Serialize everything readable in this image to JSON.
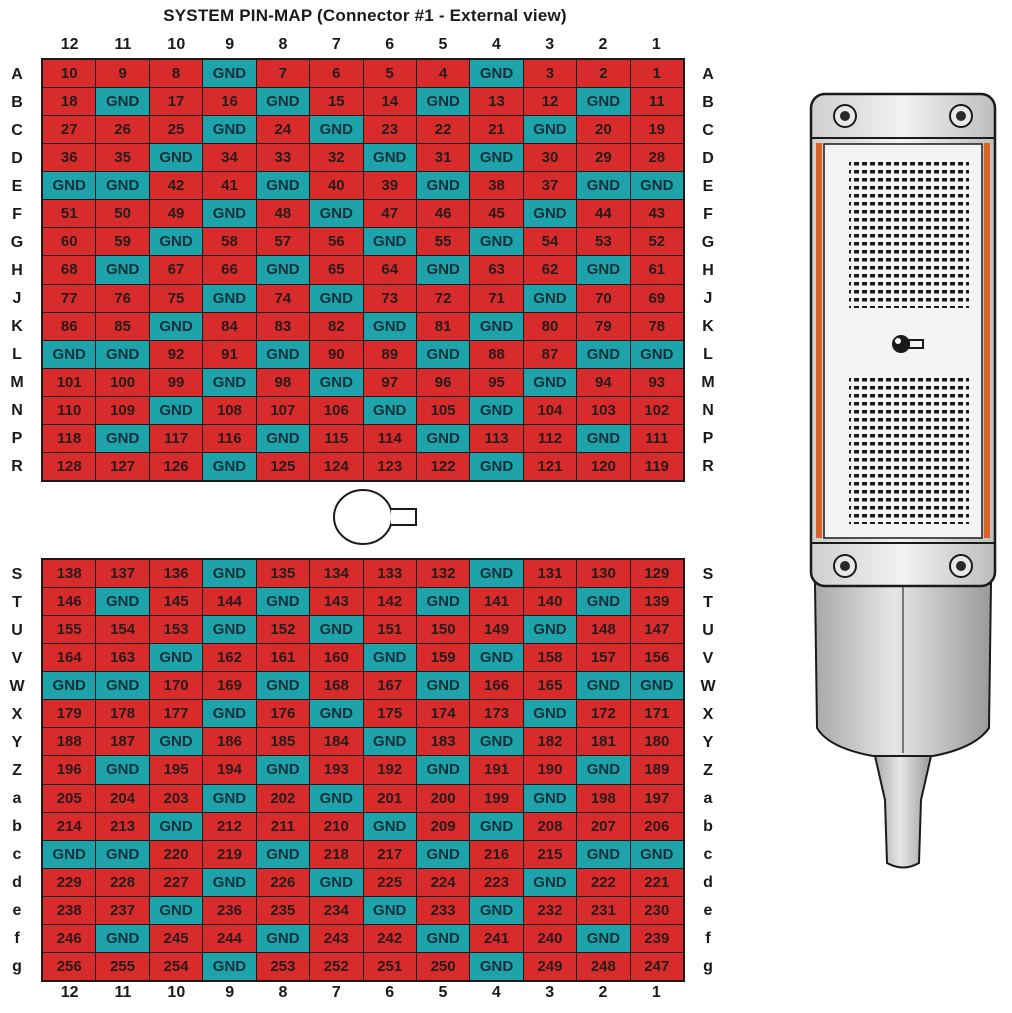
{
  "title": "SYSTEM PIN-MAP (Connector #1 - External view)",
  "columns": [
    "12",
    "11",
    "10",
    "9",
    "8",
    "7",
    "6",
    "5",
    "4",
    "3",
    "2",
    "1"
  ],
  "colors": {
    "pin": "#d82c2c",
    "gnd": "#1fa3ab"
  },
  "upper": {
    "rows": [
      "A",
      "B",
      "C",
      "D",
      "E",
      "F",
      "G",
      "H",
      "J",
      "K",
      "L",
      "M",
      "N",
      "P",
      "R"
    ],
    "cells": [
      [
        "10",
        "9",
        "8",
        "GND",
        "7",
        "6",
        "5",
        "4",
        "GND",
        "3",
        "2",
        "1"
      ],
      [
        "18",
        "GND",
        "17",
        "16",
        "GND",
        "15",
        "14",
        "GND",
        "13",
        "12",
        "GND",
        "11"
      ],
      [
        "27",
        "26",
        "25",
        "GND",
        "24",
        "GND",
        "23",
        "22",
        "21",
        "GND",
        "20",
        "19"
      ],
      [
        "36",
        "35",
        "GND",
        "34",
        "33",
        "32",
        "GND",
        "31",
        "GND",
        "30",
        "29",
        "28"
      ],
      [
        "GND",
        "GND",
        "42",
        "41",
        "GND",
        "40",
        "39",
        "GND",
        "38",
        "37",
        "GND",
        "GND"
      ],
      [
        "51",
        "50",
        "49",
        "GND",
        "48",
        "GND",
        "47",
        "46",
        "45",
        "GND",
        "44",
        "43"
      ],
      [
        "60",
        "59",
        "GND",
        "58",
        "57",
        "56",
        "GND",
        "55",
        "GND",
        "54",
        "53",
        "52"
      ],
      [
        "68",
        "GND",
        "67",
        "66",
        "GND",
        "65",
        "64",
        "GND",
        "63",
        "62",
        "GND",
        "61"
      ],
      [
        "77",
        "76",
        "75",
        "GND",
        "74",
        "GND",
        "73",
        "72",
        "71",
        "GND",
        "70",
        "69"
      ],
      [
        "86",
        "85",
        "GND",
        "84",
        "83",
        "82",
        "GND",
        "81",
        "GND",
        "80",
        "79",
        "78"
      ],
      [
        "GND",
        "GND",
        "92",
        "91",
        "GND",
        "90",
        "89",
        "GND",
        "88",
        "87",
        "GND",
        "GND"
      ],
      [
        "101",
        "100",
        "99",
        "GND",
        "98",
        "GND",
        "97",
        "96",
        "95",
        "GND",
        "94",
        "93"
      ],
      [
        "110",
        "109",
        "GND",
        "108",
        "107",
        "106",
        "GND",
        "105",
        "GND",
        "104",
        "103",
        "102"
      ],
      [
        "118",
        "GND",
        "117",
        "116",
        "GND",
        "115",
        "114",
        "GND",
        "113",
        "112",
        "GND",
        "111"
      ],
      [
        "128",
        "127",
        "126",
        "GND",
        "125",
        "124",
        "123",
        "122",
        "GND",
        "121",
        "120",
        "119"
      ]
    ]
  },
  "lower": {
    "rows": [
      "S",
      "T",
      "U",
      "V",
      "W",
      "X",
      "Y",
      "Z",
      "a",
      "b",
      "c",
      "d",
      "e",
      "f",
      "g"
    ],
    "cells": [
      [
        "138",
        "137",
        "136",
        "GND",
        "135",
        "134",
        "133",
        "132",
        "GND",
        "131",
        "130",
        "129"
      ],
      [
        "146",
        "GND",
        "145",
        "144",
        "GND",
        "143",
        "142",
        "GND",
        "141",
        "140",
        "GND",
        "139"
      ],
      [
        "155",
        "154",
        "153",
        "GND",
        "152",
        "GND",
        "151",
        "150",
        "149",
        "GND",
        "148",
        "147"
      ],
      [
        "164",
        "163",
        "GND",
        "162",
        "161",
        "160",
        "GND",
        "159",
        "GND",
        "158",
        "157",
        "156"
      ],
      [
        "GND",
        "GND",
        "170",
        "169",
        "GND",
        "168",
        "167",
        "GND",
        "166",
        "165",
        "GND",
        "GND"
      ],
      [
        "179",
        "178",
        "177",
        "GND",
        "176",
        "GND",
        "175",
        "174",
        "173",
        "GND",
        "172",
        "171"
      ],
      [
        "188",
        "187",
        "GND",
        "186",
        "185",
        "184",
        "GND",
        "183",
        "GND",
        "182",
        "181",
        "180"
      ],
      [
        "196",
        "GND",
        "195",
        "194",
        "GND",
        "193",
        "192",
        "GND",
        "191",
        "190",
        "GND",
        "189"
      ],
      [
        "205",
        "204",
        "203",
        "GND",
        "202",
        "GND",
        "201",
        "200",
        "199",
        "GND",
        "198",
        "197"
      ],
      [
        "214",
        "213",
        "GND",
        "212",
        "211",
        "210",
        "GND",
        "209",
        "GND",
        "208",
        "207",
        "206"
      ],
      [
        "GND",
        "GND",
        "220",
        "219",
        "GND",
        "218",
        "217",
        "GND",
        "216",
        "215",
        "GND",
        "GND"
      ],
      [
        "229",
        "228",
        "227",
        "GND",
        "226",
        "GND",
        "225",
        "224",
        "223",
        "GND",
        "222",
        "221"
      ],
      [
        "238",
        "237",
        "GND",
        "236",
        "235",
        "234",
        "GND",
        "233",
        "GND",
        "232",
        "231",
        "230"
      ],
      [
        "246",
        "GND",
        "245",
        "244",
        "GND",
        "243",
        "242",
        "GND",
        "241",
        "240",
        "GND",
        "239"
      ],
      [
        "256",
        "255",
        "254",
        "GND",
        "253",
        "252",
        "251",
        "250",
        "GND",
        "249",
        "248",
        "247"
      ]
    ]
  }
}
